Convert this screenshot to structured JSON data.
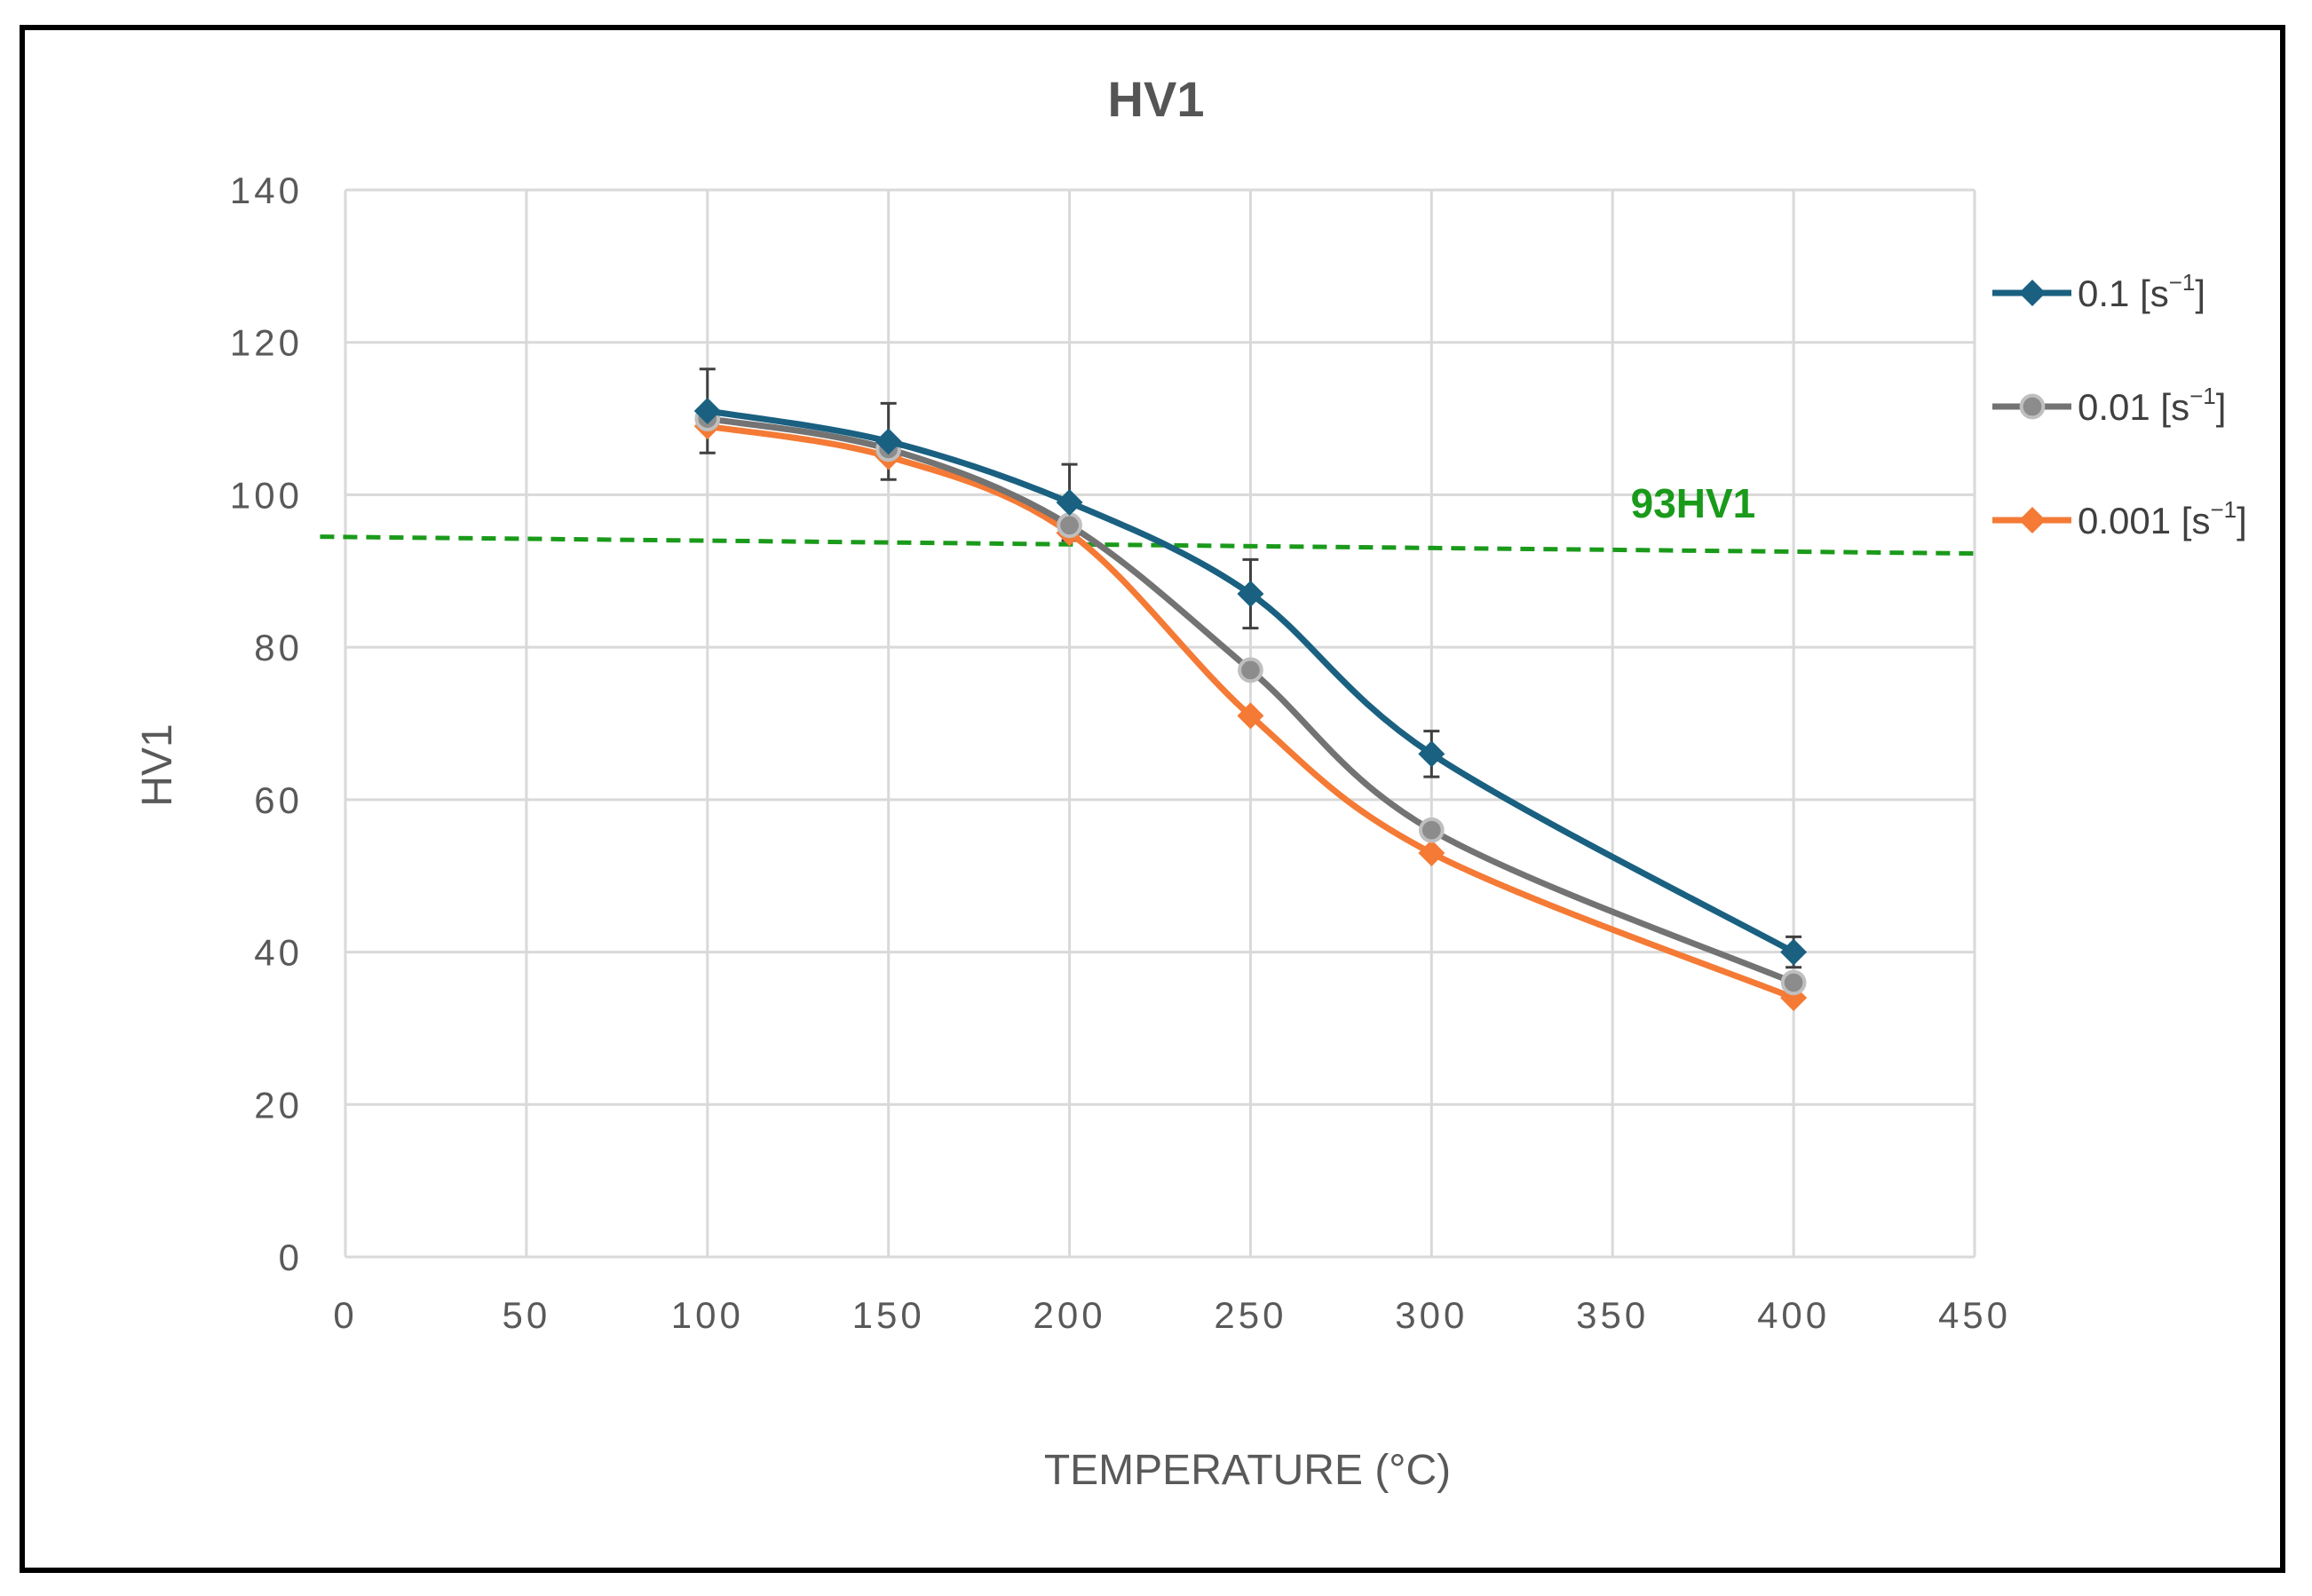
{
  "chart_data": {
    "type": "line",
    "title": "HV1",
    "xlabel": "TEMPERATURE (°C)",
    "ylabel": "HV1",
    "xlim": [
      0,
      450
    ],
    "ylim": [
      0,
      140
    ],
    "x_ticks": [
      0,
      50,
      100,
      150,
      200,
      250,
      300,
      350,
      400,
      450
    ],
    "y_ticks": [
      0,
      20,
      40,
      60,
      80,
      100,
      120,
      140
    ],
    "x_tick_labels": [
      "0",
      "50",
      "100",
      "150",
      "200",
      "250",
      "300",
      "350",
      "400",
      "450"
    ],
    "y_tick_labels": [
      "0",
      "20",
      "40",
      "60",
      "80",
      "100",
      "120",
      "140"
    ],
    "grid": true,
    "legend_position": "right",
    "x": [
      100,
      150,
      200,
      250,
      300,
      400
    ],
    "series": [
      {
        "name": "0.1 [s⁻¹]",
        "label_main": "0.1",
        "unit_open": "[s",
        "unit_sup": "−1",
        "unit_close": "]",
        "color": "#1a6081",
        "marker": "diamond",
        "values": [
          111,
          107,
          99,
          87,
          66,
          40
        ],
        "error": [
          5.5,
          5,
          5,
          4.5,
          3,
          2
        ]
      },
      {
        "name": "0.01 [s⁻¹]",
        "label_main": "0.01",
        "unit_open": "[s",
        "unit_sup": "−1",
        "unit_close": "]",
        "color": "#737373",
        "marker": "circle",
        "values": [
          110,
          106,
          96,
          77,
          56,
          36
        ],
        "error": null
      },
      {
        "name": "0.001 [s⁻¹]",
        "label_main": "0.001",
        "unit_open": "[s",
        "unit_sup": "−1",
        "unit_close": "]",
        "color": "#f47a35",
        "marker": "diamond",
        "values": [
          109,
          105,
          95,
          71,
          53,
          34
        ],
        "error": null
      }
    ],
    "reference_line": {
      "label": "93HV1",
      "color": "#1a9a1a",
      "style": "dashed",
      "start": [
        -7,
        94.5
      ],
      "end": [
        450,
        92.3
      ],
      "label_at": [
        355,
        97
      ]
    }
  }
}
